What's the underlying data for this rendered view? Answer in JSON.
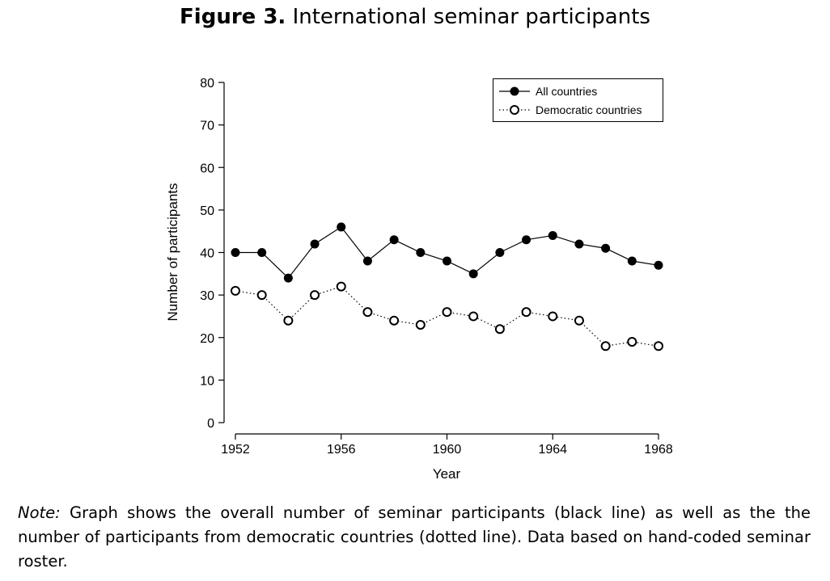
{
  "figure_label": "Figure 3.",
  "figure_title": "International seminar participants",
  "note_label": "Note:",
  "note_text": "Graph shows the overall number of seminar participants (black line) as well as the the number of participants from democratic countries (dotted line). Data based on hand-coded seminar roster.",
  "chart_data": {
    "type": "line",
    "title": "International seminar participants",
    "xlabel": "Year",
    "ylabel": "Number of participants",
    "x": [
      1952,
      1953,
      1954,
      1955,
      1956,
      1957,
      1958,
      1959,
      1960,
      1961,
      1962,
      1963,
      1964,
      1965,
      1966,
      1967,
      1968
    ],
    "xlim": [
      1952,
      1968
    ],
    "ylim": [
      0,
      80
    ],
    "xticks": [
      1952,
      1956,
      1960,
      1964,
      1968
    ],
    "yticks": [
      0,
      10,
      20,
      30,
      40,
      50,
      60,
      70,
      80
    ],
    "grid": false,
    "legend_position": "top-right",
    "series": [
      {
        "name": "All countries",
        "style": "solid, filled circles",
        "values": [
          40,
          40,
          34,
          42,
          46,
          38,
          43,
          40,
          38,
          35,
          40,
          43,
          44,
          42,
          41,
          38,
          37
        ]
      },
      {
        "name": "Democratic countries",
        "style": "dotted, open circles",
        "values": [
          31,
          30,
          24,
          30,
          32,
          26,
          24,
          23,
          26,
          25,
          22,
          26,
          25,
          24,
          18,
          19,
          18
        ]
      }
    ]
  }
}
